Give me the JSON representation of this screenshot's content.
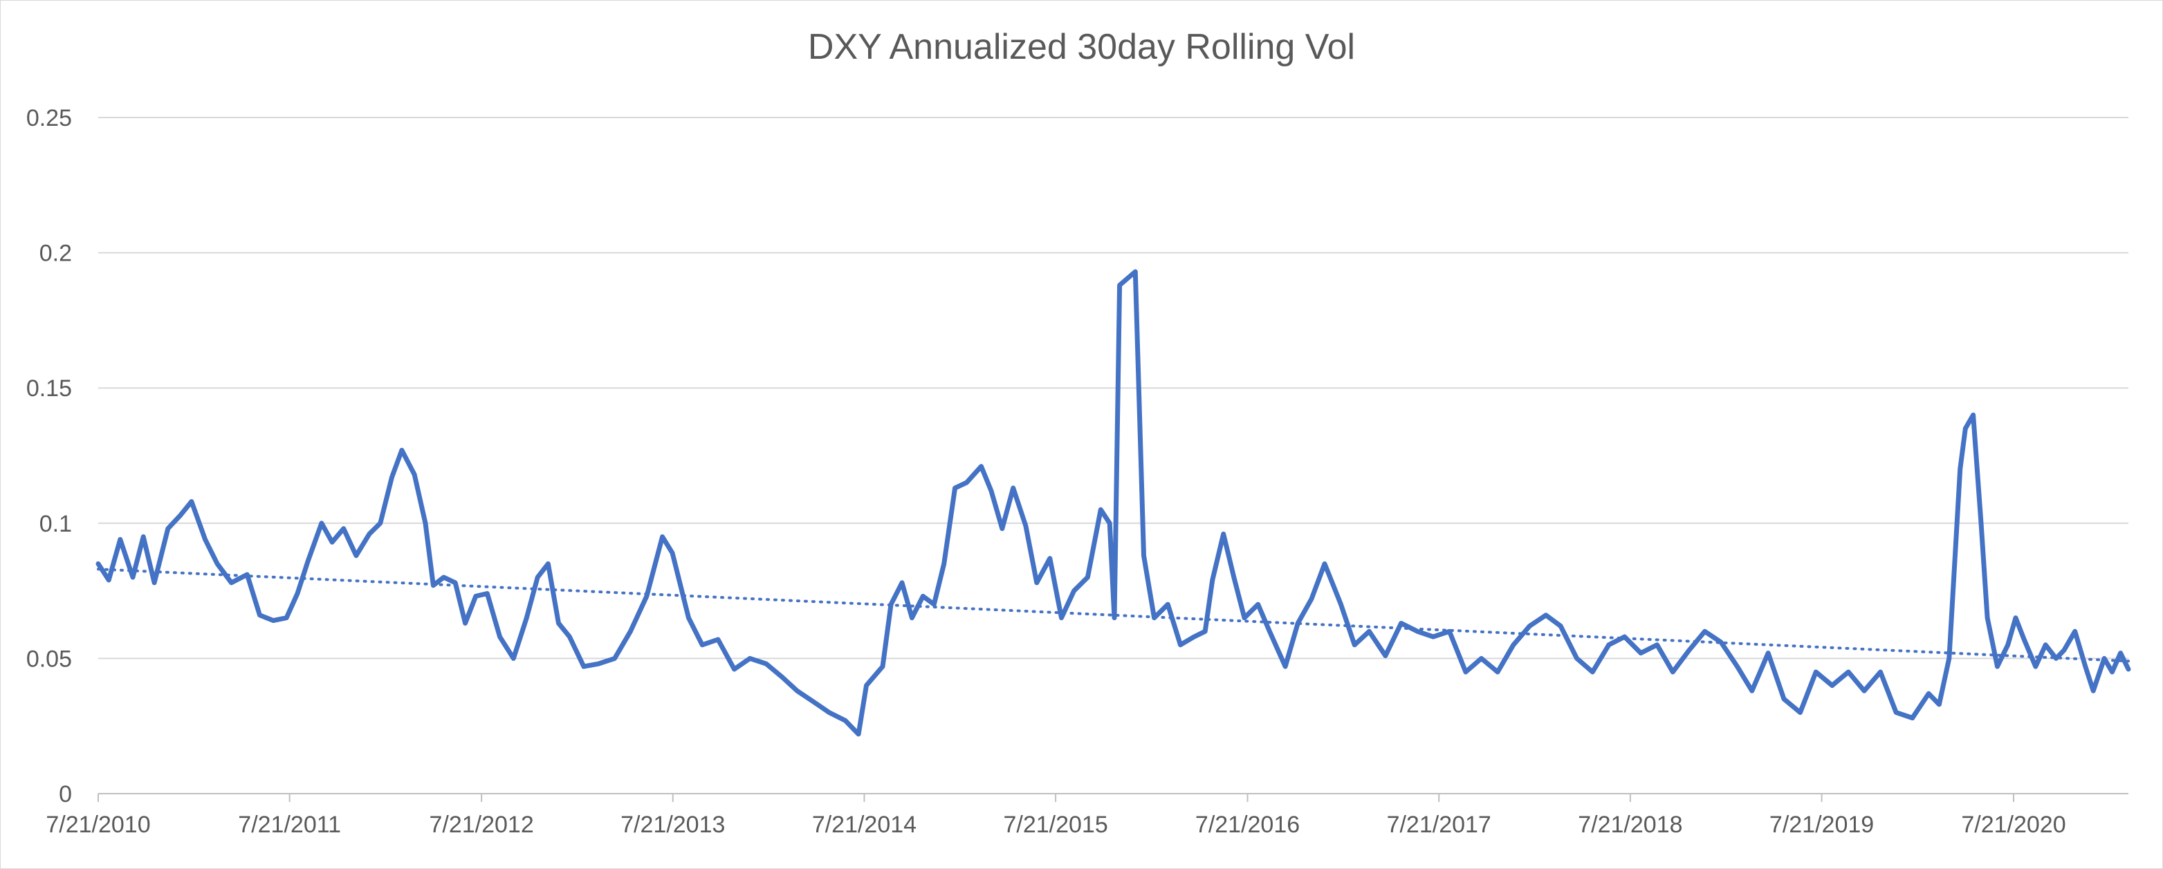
{
  "chart_data": {
    "type": "line",
    "title": "DXY Annualized 30day Rolling Vol",
    "xlabel": "",
    "ylabel": "",
    "ylim": [
      0,
      0.25
    ],
    "yticks": [
      "0",
      "0.05",
      "0.1",
      "0.15",
      "0.2",
      "0.25"
    ],
    "xticks": [
      "7/21/2010",
      "7/21/2011",
      "7/21/2012",
      "7/21/2013",
      "7/21/2014",
      "7/21/2015",
      "7/21/2016",
      "7/21/2017",
      "7/21/2018",
      "7/21/2019",
      "7/21/2020"
    ],
    "xlim": [
      "2010-07-21",
      "2021-02-25"
    ],
    "grid": "horizontal",
    "legend": "none",
    "series": [
      {
        "style": "solid",
        "color": "#4472C4",
        "points": [
          [
            "2010-07-21",
            0.085
          ],
          [
            "2010-08-10",
            0.079
          ],
          [
            "2010-09-01",
            0.094
          ],
          [
            "2010-09-25",
            0.08
          ],
          [
            "2010-10-15",
            0.095
          ],
          [
            "2010-11-05",
            0.078
          ],
          [
            "2010-12-01",
            0.098
          ],
          [
            "2010-12-25",
            0.103
          ],
          [
            "2011-01-15",
            0.108
          ],
          [
            "2011-02-10",
            0.094
          ],
          [
            "2011-03-05",
            0.085
          ],
          [
            "2011-04-01",
            0.078
          ],
          [
            "2011-05-01",
            0.081
          ],
          [
            "2011-05-25",
            0.066
          ],
          [
            "2011-06-20",
            0.064
          ],
          [
            "2011-07-15",
            0.065
          ],
          [
            "2011-08-05",
            0.074
          ],
          [
            "2011-08-25",
            0.086
          ],
          [
            "2011-09-20",
            0.1
          ],
          [
            "2011-10-10",
            0.093
          ],
          [
            "2011-11-01",
            0.098
          ],
          [
            "2011-11-25",
            0.088
          ],
          [
            "2011-12-20",
            0.096
          ],
          [
            "2012-01-10",
            0.1
          ],
          [
            "2012-02-01",
            0.117
          ],
          [
            "2012-02-20",
            0.127
          ],
          [
            "2012-03-15",
            0.118
          ],
          [
            "2012-04-05",
            0.1
          ],
          [
            "2012-04-20",
            0.077
          ],
          [
            "2012-05-10",
            0.08
          ],
          [
            "2012-06-01",
            0.078
          ],
          [
            "2012-06-20",
            0.063
          ],
          [
            "2012-07-10",
            0.073
          ],
          [
            "2012-08-01",
            0.074
          ],
          [
            "2012-08-25",
            0.058
          ],
          [
            "2012-09-20",
            0.05
          ],
          [
            "2012-10-15",
            0.065
          ],
          [
            "2012-11-05",
            0.08
          ],
          [
            "2012-11-25",
            0.085
          ],
          [
            "2012-12-15",
            0.063
          ],
          [
            "2013-01-05",
            0.058
          ],
          [
            "2013-02-01",
            0.047
          ],
          [
            "2013-03-01",
            0.048
          ],
          [
            "2013-04-01",
            0.05
          ],
          [
            "2013-05-01",
            0.06
          ],
          [
            "2013-06-01",
            0.073
          ],
          [
            "2013-07-01",
            0.095
          ],
          [
            "2013-07-20",
            0.089
          ],
          [
            "2013-08-20",
            0.065
          ],
          [
            "2013-09-15",
            0.055
          ],
          [
            "2013-10-15",
            0.057
          ],
          [
            "2013-11-15",
            0.046
          ],
          [
            "2013-12-15",
            0.05
          ],
          [
            "2014-01-15",
            0.048
          ],
          [
            "2014-02-15",
            0.043
          ],
          [
            "2014-03-15",
            0.038
          ],
          [
            "2014-04-15",
            0.034
          ],
          [
            "2014-05-15",
            0.03
          ],
          [
            "2014-06-15",
            0.027
          ],
          [
            "2014-07-10",
            0.022
          ],
          [
            "2014-07-25",
            0.04
          ],
          [
            "2014-08-25",
            0.047
          ],
          [
            "2014-09-10",
            0.07
          ],
          [
            "2014-10-01",
            0.078
          ],
          [
            "2014-10-20",
            0.065
          ],
          [
            "2014-11-10",
            0.073
          ],
          [
            "2014-12-01",
            0.07
          ],
          [
            "2014-12-20",
            0.085
          ],
          [
            "2015-01-10",
            0.113
          ],
          [
            "2015-02-01",
            0.115
          ],
          [
            "2015-03-01",
            0.121
          ],
          [
            "2015-03-20",
            0.112
          ],
          [
            "2015-04-10",
            0.098
          ],
          [
            "2015-05-01",
            0.113
          ],
          [
            "2015-05-25",
            0.099
          ],
          [
            "2015-06-15",
            0.078
          ],
          [
            "2015-07-10",
            0.087
          ],
          [
            "2015-08-01",
            0.065
          ],
          [
            "2015-08-25",
            0.075
          ],
          [
            "2015-09-20",
            0.08
          ],
          [
            "2015-10-15",
            0.105
          ],
          [
            "2015-11-01",
            0.1
          ],
          [
            "2015-11-10",
            0.065
          ],
          [
            "2015-11-20",
            0.188
          ],
          [
            "2015-12-20",
            0.193
          ],
          [
            "2016-01-05",
            0.088
          ],
          [
            "2016-01-25",
            0.065
          ],
          [
            "2016-02-20",
            0.07
          ],
          [
            "2016-03-15",
            0.055
          ],
          [
            "2016-04-10",
            0.058
          ],
          [
            "2016-05-01",
            0.06
          ],
          [
            "2016-05-15",
            0.079
          ],
          [
            "2016-06-05",
            0.096
          ],
          [
            "2016-06-25",
            0.08
          ],
          [
            "2016-07-15",
            0.065
          ],
          [
            "2016-08-10",
            0.07
          ],
          [
            "2016-09-01",
            0.06
          ],
          [
            "2016-10-01",
            0.047
          ],
          [
            "2016-10-25",
            0.063
          ],
          [
            "2016-11-20",
            0.072
          ],
          [
            "2016-12-15",
            0.085
          ],
          [
            "2017-01-15",
            0.07
          ],
          [
            "2017-02-10",
            0.055
          ],
          [
            "2017-03-10",
            0.06
          ],
          [
            "2017-04-10",
            0.051
          ],
          [
            "2017-05-10",
            0.063
          ],
          [
            "2017-06-10",
            0.06
          ],
          [
            "2017-07-10",
            0.058
          ],
          [
            "2017-08-10",
            0.06
          ],
          [
            "2017-09-10",
            0.045
          ],
          [
            "2017-10-10",
            0.05
          ],
          [
            "2017-11-10",
            0.045
          ],
          [
            "2017-12-10",
            0.055
          ],
          [
            "2018-01-10",
            0.062
          ],
          [
            "2018-02-10",
            0.066
          ],
          [
            "2018-03-10",
            0.062
          ],
          [
            "2018-04-10",
            0.05
          ],
          [
            "2018-05-10",
            0.045
          ],
          [
            "2018-06-10",
            0.055
          ],
          [
            "2018-07-10",
            0.058
          ],
          [
            "2018-08-10",
            0.052
          ],
          [
            "2018-09-10",
            0.055
          ],
          [
            "2018-10-10",
            0.045
          ],
          [
            "2018-11-10",
            0.053
          ],
          [
            "2018-12-10",
            0.06
          ],
          [
            "2019-01-10",
            0.056
          ],
          [
            "2019-02-10",
            0.047
          ],
          [
            "2019-03-10",
            0.038
          ],
          [
            "2019-04-10",
            0.052
          ],
          [
            "2019-05-10",
            0.035
          ],
          [
            "2019-06-10",
            0.03
          ],
          [
            "2019-07-10",
            0.045
          ],
          [
            "2019-08-10",
            0.04
          ],
          [
            "2019-09-10",
            0.045
          ],
          [
            "2019-10-10",
            0.038
          ],
          [
            "2019-11-10",
            0.045
          ],
          [
            "2019-12-10",
            0.03
          ],
          [
            "2020-01-10",
            0.028
          ],
          [
            "2020-02-10",
            0.037
          ],
          [
            "2020-03-01",
            0.033
          ],
          [
            "2020-03-20",
            0.05
          ],
          [
            "2020-04-01",
            0.09
          ],
          [
            "2020-04-10",
            0.12
          ],
          [
            "2020-04-20",
            0.135
          ],
          [
            "2020-05-05",
            0.14
          ],
          [
            "2020-05-20",
            0.1
          ],
          [
            "2020-06-01",
            0.065
          ],
          [
            "2020-06-20",
            0.047
          ],
          [
            "2020-07-10",
            0.055
          ],
          [
            "2020-07-25",
            0.065
          ],
          [
            "2020-08-10",
            0.057
          ],
          [
            "2020-09-01",
            0.047
          ],
          [
            "2020-09-20",
            0.055
          ],
          [
            "2020-10-10",
            0.05
          ],
          [
            "2020-10-25",
            0.053
          ],
          [
            "2020-11-15",
            0.06
          ],
          [
            "2020-12-05",
            0.047
          ],
          [
            "2020-12-20",
            0.038
          ],
          [
            "2021-01-10",
            0.05
          ],
          [
            "2021-01-25",
            0.045
          ],
          [
            "2021-02-10",
            0.052
          ],
          [
            "2021-02-25",
            0.046
          ]
        ]
      },
      {
        "style": "dotted",
        "color": "#4472C4",
        "points": [
          [
            "2010-07-21",
            0.083
          ],
          [
            "2021-02-25",
            0.049
          ]
        ]
      }
    ]
  }
}
